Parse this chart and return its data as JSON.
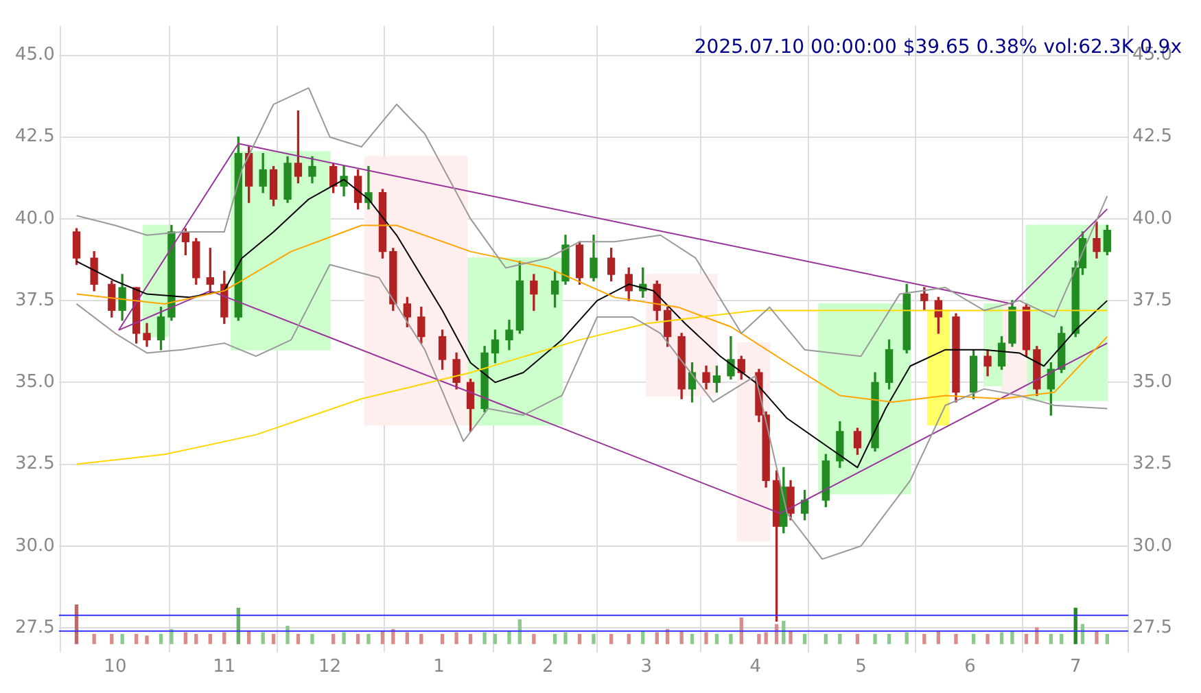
{
  "chart_data": {
    "type": "candlestick",
    "title": "2025.07.10 00:00:00 $39.65 0.38% vol:62.3K 0.9x",
    "x": [
      "2024-09-20",
      "2024-09-25",
      "2024-09-30",
      "2024-10-03",
      "2024-10-07",
      "2024-10-10",
      "2024-10-14",
      "2024-10-17",
      "2024-10-21",
      "2024-10-24",
      "2024-10-28",
      "2024-11-01",
      "2024-11-05",
      "2024-11-08",
      "2024-11-12",
      "2024-11-15",
      "2024-11-19",
      "2024-11-22",
      "2024-11-26",
      "2024-12-02",
      "2024-12-05",
      "2024-12-09",
      "2024-12-12",
      "2024-12-16",
      "2024-12-19",
      "2024-12-23",
      "2024-12-27",
      "2025-01-02",
      "2025-01-06",
      "2025-01-10",
      "2025-01-14",
      "2025-01-17",
      "2025-01-21",
      "2025-01-24",
      "2025-01-28",
      "2025-02-03",
      "2025-02-06",
      "2025-02-10",
      "2025-02-14",
      "2025-02-19",
      "2025-02-24",
      "2025-02-28",
      "2025-03-04",
      "2025-03-07",
      "2025-03-11",
      "2025-03-14",
      "2025-03-18",
      "2025-03-21",
      "2025-03-25",
      "2025-03-28",
      "2025-04-02",
      "2025-04-04",
      "2025-04-07",
      "2025-04-09",
      "2025-04-11",
      "2025-04-15",
      "2025-04-21",
      "2025-04-25",
      "2025-04-30",
      "2025-05-05",
      "2025-05-09",
      "2025-05-14",
      "2025-05-19",
      "2025-05-23",
      "2025-05-28",
      "2025-06-02",
      "2025-06-06",
      "2025-06-10",
      "2025-06-13",
      "2025-06-17",
      "2025-06-20",
      "2025-06-24",
      "2025-06-27",
      "2025-07-01",
      "2025-07-03",
      "2025-07-07",
      "2025-07-10"
    ],
    "ohlc": [
      [
        39.6,
        39.7,
        38.6,
        38.8
      ],
      [
        38.8,
        39.0,
        37.8,
        38.0
      ],
      [
        38.0,
        38.1,
        37.0,
        37.2
      ],
      [
        37.2,
        38.3,
        36.9,
        37.9
      ],
      [
        37.9,
        37.9,
        36.2,
        36.5
      ],
      [
        36.5,
        36.8,
        36.1,
        36.3
      ],
      [
        36.3,
        37.3,
        36.0,
        37.0
      ],
      [
        37.0,
        39.8,
        36.9,
        39.6
      ],
      [
        39.6,
        39.7,
        38.9,
        39.3
      ],
      [
        39.3,
        39.4,
        38.0,
        38.2
      ],
      [
        38.2,
        39.1,
        37.7,
        38.0
      ],
      [
        38.0,
        38.4,
        36.8,
        37.0
      ],
      [
        37.0,
        42.5,
        36.9,
        42.0
      ],
      [
        42.0,
        42.2,
        40.5,
        41.0
      ],
      [
        41.0,
        42.0,
        40.8,
        41.5
      ],
      [
        41.5,
        41.6,
        40.4,
        40.6
      ],
      [
        40.6,
        41.9,
        40.5,
        41.7
      ],
      [
        41.7,
        43.3,
        41.1,
        41.3
      ],
      [
        41.3,
        41.9,
        41.1,
        41.6
      ],
      [
        41.6,
        41.7,
        40.8,
        41.0
      ],
      [
        41.0,
        41.6,
        40.7,
        41.3
      ],
      [
        41.3,
        41.5,
        40.3,
        40.5
      ],
      [
        40.5,
        41.6,
        40.3,
        40.8
      ],
      [
        40.8,
        40.9,
        38.8,
        39.0
      ],
      [
        39.0,
        39.1,
        37.2,
        37.4
      ],
      [
        37.4,
        37.6,
        36.7,
        37.0
      ],
      [
        37.0,
        37.3,
        36.2,
        36.4
      ],
      [
        36.4,
        36.6,
        35.4,
        35.7
      ],
      [
        35.7,
        35.9,
        34.8,
        35.0
      ],
      [
        35.0,
        35.1,
        33.5,
        34.2
      ],
      [
        34.2,
        36.1,
        34.1,
        35.9
      ],
      [
        35.9,
        36.6,
        35.6,
        36.3
      ],
      [
        36.3,
        36.9,
        36.0,
        36.6
      ],
      [
        36.6,
        38.7,
        36.5,
        38.1
      ],
      [
        38.1,
        38.3,
        37.2,
        37.7
      ],
      [
        37.7,
        38.4,
        37.3,
        38.1
      ],
      [
        38.1,
        39.5,
        38.0,
        39.2
      ],
      [
        39.2,
        39.3,
        38.0,
        38.2
      ],
      [
        38.2,
        39.5,
        38.1,
        38.8
      ],
      [
        38.8,
        39.1,
        38.1,
        38.3
      ],
      [
        38.3,
        38.5,
        37.5,
        37.8
      ],
      [
        37.8,
        38.5,
        37.6,
        38.0
      ],
      [
        38.0,
        38.1,
        36.9,
        37.2
      ],
      [
        37.2,
        37.3,
        36.1,
        36.4
      ],
      [
        36.4,
        36.5,
        34.5,
        34.8
      ],
      [
        34.8,
        35.6,
        34.4,
        35.3
      ],
      [
        35.3,
        35.5,
        34.8,
        35.0
      ],
      [
        35.0,
        35.5,
        34.7,
        35.2
      ],
      [
        35.2,
        36.4,
        35.1,
        35.7
      ],
      [
        35.7,
        35.8,
        35.1,
        35.3
      ],
      [
        35.3,
        35.4,
        33.8,
        34.0
      ],
      [
        34.0,
        34.1,
        31.8,
        32.0
      ],
      [
        32.0,
        32.3,
        27.7,
        30.6
      ],
      [
        30.6,
        32.4,
        30.4,
        31.8
      ],
      [
        31.8,
        32.0,
        30.8,
        31.0
      ],
      [
        31.0,
        31.7,
        30.8,
        31.4
      ],
      [
        31.4,
        32.8,
        31.2,
        32.6
      ],
      [
        32.6,
        33.8,
        32.4,
        33.5
      ],
      [
        33.5,
        33.6,
        32.8,
        33.0
      ],
      [
        33.0,
        35.3,
        32.9,
        35.0
      ],
      [
        35.0,
        36.3,
        34.8,
        36.0
      ],
      [
        36.0,
        38.0,
        35.9,
        37.7
      ],
      [
        37.7,
        37.9,
        37.2,
        37.5
      ],
      [
        37.5,
        37.6,
        36.5,
        37.0
      ],
      [
        37.0,
        37.1,
        34.4,
        34.7
      ],
      [
        34.7,
        36.0,
        34.5,
        35.8
      ],
      [
        35.8,
        36.0,
        35.2,
        35.5
      ],
      [
        35.5,
        36.4,
        35.4,
        36.2
      ],
      [
        36.2,
        37.5,
        36.1,
        37.3
      ],
      [
        37.3,
        37.4,
        35.8,
        36.0
      ],
      [
        36.0,
        36.1,
        34.6,
        34.8
      ],
      [
        34.8,
        35.6,
        34.0,
        35.4
      ],
      [
        35.4,
        36.7,
        35.3,
        36.5
      ],
      [
        36.5,
        38.7,
        36.4,
        38.5
      ],
      [
        38.5,
        39.6,
        38.3,
        39.4
      ],
      [
        39.4,
        39.9,
        38.8,
        39.0
      ],
      [
        39.0,
        39.8,
        38.9,
        39.65
      ]
    ],
    "colors": [
      "#b22222",
      "#b22222",
      "#b22222",
      "#228b22",
      "#b22222",
      "#b22222",
      "#228b22",
      "#228b22",
      "#b22222",
      "#b22222",
      "#b22222",
      "#b22222",
      "#228b22",
      "#b22222",
      "#228b22",
      "#b22222",
      "#228b22",
      "#b22222",
      "#228b22",
      "#b22222",
      "#228b22",
      "#b22222",
      "#228b22",
      "#b22222",
      "#b22222",
      "#b22222",
      "#b22222",
      "#b22222",
      "#b22222",
      "#b22222",
      "#228b22",
      "#228b22",
      "#228b22",
      "#228b22",
      "#b22222",
      "#228b22",
      "#228b22",
      "#b22222",
      "#228b22",
      "#b22222",
      "#b22222",
      "#228b22",
      "#b22222",
      "#b22222",
      "#b22222",
      "#228b22",
      "#b22222",
      "#228b22",
      "#228b22",
      "#b22222",
      "#b22222",
      "#b22222",
      "#b22222",
      "#228b22",
      "#b22222",
      "#228b22",
      "#228b22",
      "#228b22",
      "#b22222",
      "#228b22",
      "#228b22",
      "#228b22",
      "#b22222",
      "#b22222",
      "#b22222",
      "#228b22",
      "#b22222",
      "#228b22",
      "#228b22",
      "#b22222",
      "#b22222",
      "#228b22",
      "#228b22",
      "#228b22",
      "#228b22",
      "#b22222",
      "#228b22"
    ],
    "series": [
      {
        "type": "area",
        "color": "#ccffcc",
        "x": [
          "2024-10-09",
          "2024-10-16",
          "2024-10-16",
          "2024-10-09",
          "2024-10-09"
        ],
        "values": [
          39.8,
          39.8,
          36.4,
          36.4,
          39.8
        ]
      },
      {
        "type": "area",
        "color": "#ccffcc",
        "x": [
          "2024-11-03",
          "2024-12-01",
          "2024-12-01",
          "2024-11-03",
          "2024-11-03"
        ],
        "values": [
          42.05,
          42.05,
          36.0,
          36.0,
          42.05
        ]
      },
      {
        "type": "area",
        "color": "#ffeeee",
        "x": [
          "2024-12-11",
          "2025-01-09",
          "2025-01-09",
          "2024-12-11",
          "2024-12-11"
        ],
        "values": [
          41.9,
          41.9,
          33.7,
          33.7,
          41.9
        ]
      },
      {
        "type": "area",
        "color": "#ccffcc",
        "x": [
          "2025-01-09",
          "2025-02-05",
          "2025-02-05",
          "2025-01-09",
          "2025-01-09"
        ],
        "values": [
          38.8,
          38.8,
          33.7,
          33.7,
          38.8
        ]
      },
      {
        "type": "area",
        "color": "#ffeeee",
        "x": [
          "2025-03-01",
          "2025-03-21",
          "2025-03-21",
          "2025-03-01",
          "2025-03-01"
        ],
        "values": [
          38.3,
          38.3,
          34.6,
          34.6,
          38.3
        ]
      },
      {
        "type": "area",
        "color": "#ffeeee",
        "x": [
          "2025-03-27",
          "2025-04-05",
          "2025-04-05",
          "2025-03-27",
          "2025-03-27"
        ],
        "values": [
          36.2,
          36.2,
          30.15,
          30.15,
          36.2
        ]
      },
      {
        "type": "area",
        "color": "#ccffcc",
        "x": [
          "2025-04-19",
          "2025-05-15",
          "2025-05-15",
          "2025-04-19",
          "2025-04-19"
        ],
        "values": [
          37.4,
          37.4,
          31.6,
          31.6,
          37.4
        ]
      },
      {
        "type": "area",
        "color": "#ffff66",
        "x": [
          "2025-05-20",
          "2025-05-26",
          "2025-05-26",
          "2025-05-20",
          "2025-05-20"
        ],
        "values": [
          37.2,
          37.2,
          33.7,
          33.7,
          37.2
        ]
      },
      {
        "type": "area",
        "color": "#ccffcc",
        "x": [
          "2025-06-05",
          "2025-06-10",
          "2025-06-10",
          "2025-06-05",
          "2025-06-05"
        ],
        "values": [
          37.4,
          37.4,
          34.9,
          34.9,
          37.4
        ]
      },
      {
        "type": "area",
        "color": "#ffeeee",
        "x": [
          "2025-06-10",
          "2025-06-17",
          "2025-06-17",
          "2025-06-10",
          "2025-06-10"
        ],
        "values": [
          37.4,
          37.4,
          34.5,
          34.5,
          37.4
        ]
      },
      {
        "type": "area",
        "color": "#ccffcc",
        "x": [
          "2025-06-17",
          "2025-07-10",
          "2025-07-10",
          "2025-06-17",
          "2025-06-17"
        ],
        "values": [
          39.8,
          39.8,
          34.45,
          34.45,
          39.8
        ]
      },
      {
        "type": "line",
        "color": "#999999",
        "x": [
          "2024-09-20",
          "2024-10-01",
          "2024-10-10",
          "2024-10-20",
          "2024-11-01",
          "2024-11-06",
          "2024-11-15",
          "2024-11-25",
          "2024-12-01",
          "2024-12-10",
          "2024-12-20",
          "2024-12-28",
          "2025-01-10",
          "2025-01-20",
          "2025-02-01",
          "2025-02-10",
          "2025-02-20",
          "2025-03-05",
          "2025-03-15",
          "2025-03-28",
          "2025-04-05",
          "2025-04-15",
          "2025-05-01",
          "2025-05-12",
          "2025-05-25",
          "2025-06-05",
          "2025-06-15",
          "2025-06-25",
          "2025-07-10"
        ],
        "values": [
          40.1,
          39.8,
          39.5,
          39.6,
          39.6,
          41.5,
          43.5,
          44.0,
          42.5,
          42.2,
          43.5,
          42.6,
          40.0,
          38.5,
          38.8,
          39.3,
          39.3,
          39.5,
          38.8,
          36.5,
          37.3,
          36.0,
          35.8,
          37.7,
          37.9,
          37.2,
          37.5,
          37.0,
          40.7
        ]
      },
      {
        "type": "line",
        "color": "#999999",
        "x": [
          "2024-09-20",
          "2024-10-01",
          "2024-10-10",
          "2024-10-20",
          "2024-11-01",
          "2024-11-10",
          "2024-11-20",
          "2024-12-01",
          "2024-12-15",
          "2024-12-28",
          "2025-01-08",
          "2025-01-15",
          "2025-01-25",
          "2025-02-05",
          "2025-02-15",
          "2025-02-25",
          "2025-03-05",
          "2025-03-20",
          "2025-04-01",
          "2025-04-10",
          "2025-04-20",
          "2025-05-01",
          "2025-05-15",
          "2025-05-25",
          "2025-06-05",
          "2025-06-15",
          "2025-06-25",
          "2025-07-10"
        ],
        "values": [
          37.4,
          36.5,
          35.9,
          36.0,
          36.2,
          35.8,
          36.3,
          38.6,
          38.2,
          36.0,
          33.2,
          34.2,
          34.0,
          34.6,
          37.0,
          37.0,
          36.5,
          34.4,
          35.2,
          31.0,
          29.6,
          30.0,
          32.0,
          34.3,
          34.8,
          34.6,
          34.3,
          34.2
        ]
      },
      {
        "type": "line",
        "color": "#ffd700",
        "x": [
          "2024-09-20",
          "2024-10-15",
          "2024-11-10",
          "2024-12-10",
          "2025-01-10",
          "2025-02-10",
          "2025-03-01",
          "2025-04-01",
          "2025-05-01",
          "2025-06-01",
          "2025-07-10"
        ],
        "values": [
          32.5,
          32.8,
          33.4,
          34.5,
          35.3,
          36.3,
          36.8,
          37.2,
          37.2,
          37.2,
          37.2
        ]
      },
      {
        "type": "line",
        "color": "#ffa500",
        "x": [
          "2024-09-20",
          "2024-10-15",
          "2024-11-01",
          "2024-11-20",
          "2024-12-10",
          "2024-12-20",
          "2025-01-10",
          "2025-02-01",
          "2025-02-20",
          "2025-03-10",
          "2025-03-25",
          "2025-04-10",
          "2025-04-25",
          "2025-05-10",
          "2025-05-25",
          "2025-06-10",
          "2025-06-25",
          "2025-07-10"
        ],
        "values": [
          37.7,
          37.4,
          37.8,
          39.0,
          39.8,
          39.8,
          39.0,
          38.5,
          37.6,
          37.3,
          36.7,
          35.6,
          34.6,
          34.4,
          34.6,
          34.5,
          34.7,
          36.4
        ]
      },
      {
        "type": "line",
        "color": "#000000",
        "x": [
          "2024-09-20",
          "2024-10-01",
          "2024-10-10",
          "2024-10-22",
          "2024-11-01",
          "2024-11-06",
          "2024-11-15",
          "2024-11-25",
          "2024-12-05",
          "2024-12-12",
          "2024-12-20",
          "2025-01-02",
          "2025-01-10",
          "2025-01-17",
          "2025-01-25",
          "2025-02-05",
          "2025-02-15",
          "2025-02-24",
          "2025-03-03",
          "2025-03-12",
          "2025-03-22",
          "2025-04-01",
          "2025-04-10",
          "2025-04-22",
          "2025-04-30",
          "2025-05-08",
          "2025-05-15",
          "2025-05-25",
          "2025-06-05",
          "2025-06-15",
          "2025-06-22",
          "2025-07-01",
          "2025-07-10"
        ],
        "values": [
          38.7,
          38.1,
          37.7,
          37.6,
          37.8,
          38.8,
          39.6,
          40.6,
          41.2,
          40.6,
          39.5,
          37.2,
          35.6,
          35.0,
          35.3,
          36.3,
          37.5,
          38.0,
          37.8,
          36.8,
          35.8,
          35.0,
          33.9,
          33.0,
          32.4,
          34.2,
          35.5,
          36.0,
          36.0,
          35.9,
          35.5,
          36.6,
          37.5
        ]
      },
      {
        "type": "line",
        "color": "#993399",
        "x": [
          "2024-10-02",
          "2024-11-05",
          "2025-06-13",
          "2025-07-10"
        ],
        "values": [
          36.6,
          42.3,
          37.4,
          40.3
        ]
      },
      {
        "type": "line",
        "color": "#993399",
        "x": [
          "2024-10-02",
          "2024-10-28",
          "2025-04-08",
          "2025-07-10"
        ],
        "values": [
          36.6,
          37.8,
          31.0,
          36.2
        ]
      },
      {
        "type": "bar",
        "colors": [
          "#c86464",
          "#d98c8c",
          "#d98c8c",
          "#8cc98c",
          "#d98c8c",
          "#d98c8c",
          "#8cc98c",
          "#8cc98c",
          "#d98c8c",
          "#d98c8c",
          "#d98c8c",
          "#d98c8c",
          "#64b464",
          "#d98c8c",
          "#8cc98c",
          "#d98c8c",
          "#8cc98c",
          "#d98c8c",
          "#8cc98c",
          "#d98c8c",
          "#8cc98c",
          "#d98c8c",
          "#8cc98c",
          "#d98c8c",
          "#d98c8c",
          "#d98c8c",
          "#d98c8c",
          "#d98c8c",
          "#d98c8c",
          "#d98c8c",
          "#8cc98c",
          "#8cc98c",
          "#8cc98c",
          "#8cc98c",
          "#d98c8c",
          "#8cc98c",
          "#8cc98c",
          "#d98c8c",
          "#8cc98c",
          "#d98c8c",
          "#d98c8c",
          "#8cc98c",
          "#d98c8c",
          "#d98c8c",
          "#d98c8c",
          "#8cc98c",
          "#d98c8c",
          "#8cc98c",
          "#8cc98c",
          "#d98c8c",
          "#d98c8c",
          "#d98c8c",
          "#d98c8c",
          "#8cc98c",
          "#d98c8c",
          "#8cc98c",
          "#8cc98c",
          "#8cc98c",
          "#d98c8c",
          "#8cc98c",
          "#8cc98c",
          "#8cc98c",
          "#d98c8c",
          "#d98c8c",
          "#d98c8c",
          "#8cc98c",
          "#d98c8c",
          "#8cc98c",
          "#8cc98c",
          "#d98c8c",
          "#d98c8c",
          "#8cc98c",
          "#8cc98c",
          "#228b22",
          "#8cc98c",
          "#d98c8c",
          "#8cc98c"
        ],
        "base": [
          27.0,
          27.0,
          27.0,
          27.0,
          27.0,
          27.0,
          27.0,
          27.0,
          27.0,
          27.0,
          27.0,
          27.0,
          27.0,
          27.0,
          27.0,
          27.0,
          27.0,
          27.0,
          27.0,
          27.0,
          27.0,
          27.0,
          27.0,
          27.0,
          27.0,
          27.0,
          27.0,
          27.0,
          27.0,
          27.0,
          27.0,
          27.0,
          27.0,
          27.0,
          27.0,
          27.0,
          27.0,
          27.0,
          27.0,
          27.0,
          27.0,
          27.0,
          27.0,
          27.0,
          27.0,
          27.0,
          27.0,
          27.0,
          27.0,
          27.0,
          27.0,
          27.0,
          27.0,
          27.0,
          27.0,
          27.0,
          27.0,
          27.0,
          27.0,
          27.0,
          27.0,
          27.0,
          27.0,
          27.0,
          27.0,
          27.0,
          27.0,
          27.0,
          27.0,
          27.0,
          27.0,
          27.0,
          27.0,
          27.0,
          27.0,
          27.0,
          27.0
        ],
        "values": [
          1.2,
          0.3,
          0.3,
          0.3,
          0.3,
          0.25,
          0.3,
          0.45,
          0.35,
          0.3,
          0.3,
          0.35,
          1.1,
          0.4,
          0.35,
          0.3,
          0.55,
          0.3,
          0.3,
          0.3,
          0.35,
          0.3,
          0.3,
          0.4,
          0.45,
          0.35,
          0.3,
          0.3,
          0.35,
          0.3,
          0.35,
          0.3,
          0.4,
          0.75,
          0.3,
          0.3,
          0.35,
          0.3,
          0.3,
          0.3,
          0.3,
          0.4,
          0.35,
          0.45,
          0.4,
          0.3,
          0.35,
          0.3,
          0.3,
          0.8,
          0.3,
          0.35,
          0.6,
          0.7,
          0.4,
          0.3,
          0.3,
          0.3,
          0.3,
          0.3,
          0.3,
          0.35,
          0.3,
          0.4,
          0.3,
          0.3,
          0.3,
          0.35,
          0.4,
          0.3,
          0.5,
          0.3,
          0.3,
          1.1,
          0.6,
          0.4,
          0.3
        ]
      }
    ],
    "ref_lines": [
      {
        "axis": "y",
        "value": 27.88,
        "color": "#3333ff"
      },
      {
        "axis": "y",
        "value": 27.4,
        "color": "#3333ff"
      }
    ],
    "xlim": [
      "2024-09-15",
      "2025-07-16"
    ],
    "xticks": [
      {
        "value": "2024-10-01",
        "label": "10"
      },
      {
        "value": "2024-11-01",
        "label": "11"
      },
      {
        "value": "2024-12-01",
        "label": "12"
      },
      {
        "value": "2025-01-01",
        "label": "1"
      },
      {
        "value": "2025-02-01",
        "label": "2"
      },
      {
        "value": "2025-03-01",
        "label": "3"
      },
      {
        "value": "2025-04-01",
        "label": "4"
      },
      {
        "value": "2025-05-01",
        "label": "5"
      },
      {
        "value": "2025-06-01",
        "label": "6"
      },
      {
        "value": "2025-07-01",
        "label": "7"
      }
    ],
    "ylim": [
      27.0,
      45.9
    ],
    "yticks": [
      27.5,
      {
        "value": 30,
        "label": "30.0"
      },
      32.5,
      {
        "value": 35,
        "label": "35.0"
      },
      37.5,
      {
        "value": 40,
        "label": "40.0"
      },
      42.5,
      {
        "value": 45,
        "label": "45.0"
      }
    ],
    "y2lim": [
      27.0,
      45.9
    ],
    "y2ticks": [
      27.5,
      {
        "value": 30,
        "label": "30.0"
      },
      32.5,
      {
        "value": 35,
        "label": "35.0"
      },
      37.5,
      {
        "value": 40,
        "label": "40.0"
      },
      42.5,
      {
        "value": 45,
        "label": "45.0"
      }
    ],
    "grid": true,
    "legend": false
  }
}
